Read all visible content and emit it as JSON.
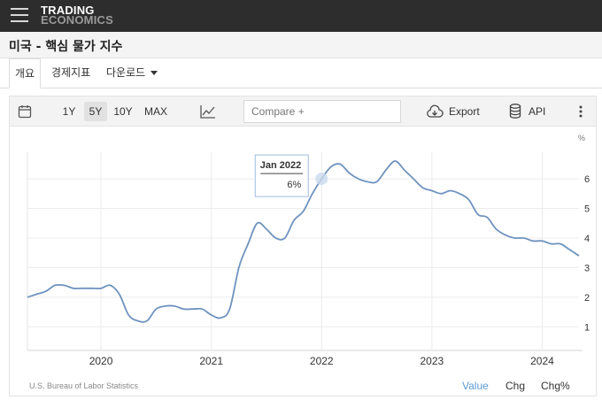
{
  "header": {
    "logo_line1": "TRADING",
    "logo_line2": "ECONOMICS"
  },
  "page": {
    "title": "미국 - 핵심 물가 지수"
  },
  "tabs": [
    {
      "label": "개요"
    },
    {
      "label": "경제지표"
    },
    {
      "label": "다운로드"
    }
  ],
  "toolbar": {
    "ranges": [
      "1Y",
      "5Y",
      "10Y",
      "MAX"
    ],
    "selected_range": "5Y",
    "compare_placeholder": "Compare +",
    "export_label": "Export",
    "api_label": "API"
  },
  "footer": {
    "source": "U.S. Bureau of Labor Statistics",
    "value_label": "Value",
    "chg_label": "Chg",
    "chgpct_label": "Chg%"
  },
  "colors": {
    "line": "#6f93bf",
    "active": "#5b9bd5"
  },
  "chart_data": {
    "type": "line",
    "yunit": "%",
    "xticks": [
      "2020",
      "2021",
      "2022",
      "2023",
      "2024"
    ],
    "yticks": [
      1,
      2,
      3,
      4,
      5,
      6
    ],
    "ylim": [
      0.2,
      6.9
    ],
    "grid": true,
    "tooltip": {
      "date": "Jan 2022",
      "value": "6%"
    },
    "x": [
      "2019-05",
      "2019-06",
      "2019-07",
      "2019-08",
      "2019-09",
      "2019-10",
      "2019-11",
      "2019-12",
      "2020-01",
      "2020-02",
      "2020-03",
      "2020-04",
      "2020-05",
      "2020-06",
      "2020-07",
      "2020-08",
      "2020-09",
      "2020-10",
      "2020-11",
      "2020-12",
      "2021-01",
      "2021-02",
      "2021-03",
      "2021-04",
      "2021-05",
      "2021-06",
      "2021-07",
      "2021-08",
      "2021-09",
      "2021-10",
      "2021-11",
      "2021-12",
      "2022-01",
      "2022-02",
      "2022-03",
      "2022-04",
      "2022-05",
      "2022-06",
      "2022-07",
      "2022-08",
      "2022-09",
      "2022-10",
      "2022-11",
      "2022-12",
      "2023-01",
      "2023-02",
      "2023-03",
      "2023-04",
      "2023-05",
      "2023-06",
      "2023-07",
      "2023-08",
      "2023-09",
      "2023-10",
      "2023-11",
      "2023-12",
      "2024-01",
      "2024-02",
      "2024-03",
      "2024-04",
      "2024-05"
    ],
    "values": [
      2.0,
      2.1,
      2.2,
      2.4,
      2.4,
      2.3,
      2.3,
      2.3,
      2.3,
      2.4,
      2.1,
      1.4,
      1.2,
      1.2,
      1.6,
      1.7,
      1.7,
      1.6,
      1.6,
      1.6,
      1.4,
      1.3,
      1.6,
      3.0,
      3.8,
      4.5,
      4.3,
      4.0,
      4.0,
      4.6,
      4.9,
      5.5,
      6.0,
      6.4,
      6.5,
      6.2,
      6.0,
      5.9,
      5.9,
      6.3,
      6.6,
      6.3,
      6.0,
      5.7,
      5.6,
      5.5,
      5.6,
      5.5,
      5.3,
      4.8,
      4.7,
      4.3,
      4.1,
      4.0,
      4.0,
      3.9,
      3.9,
      3.8,
      3.8,
      3.6,
      3.4
    ]
  }
}
